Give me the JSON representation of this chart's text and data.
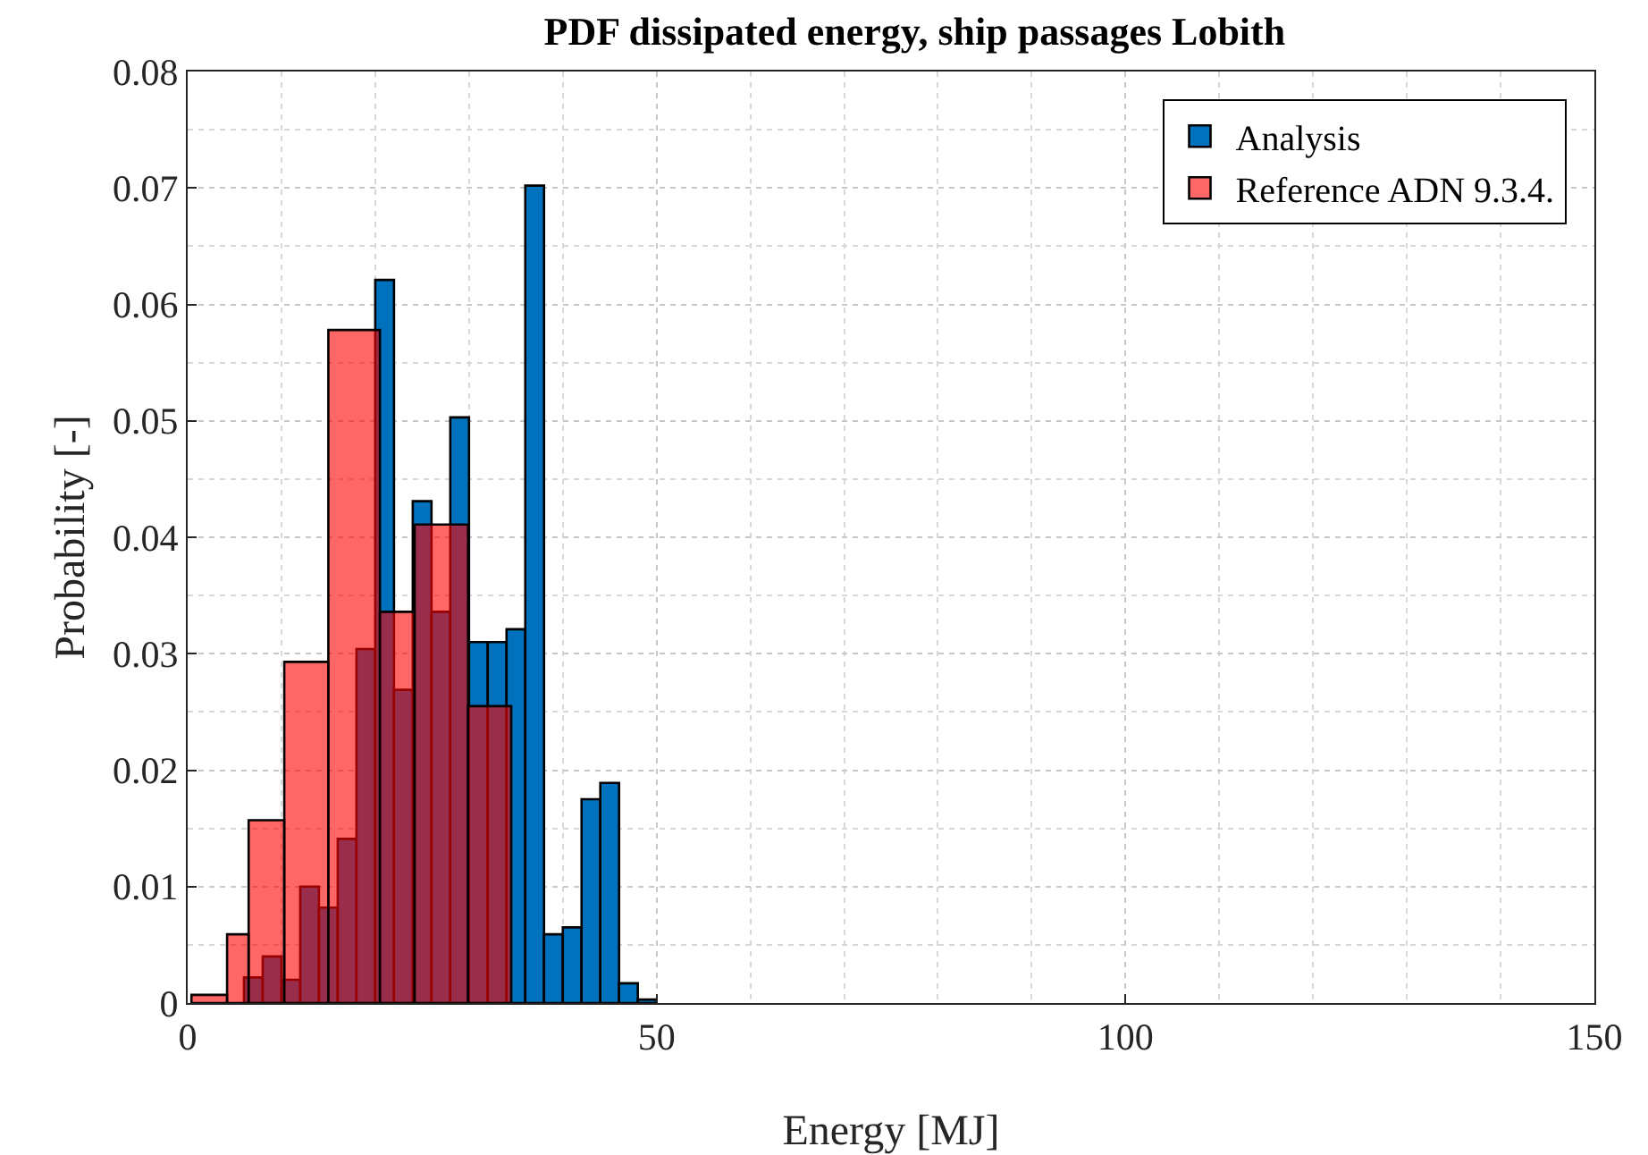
{
  "chart_data": {
    "type": "histogram",
    "title": "PDF dissipated energy, ship passages Lobith",
    "xlabel": "Energy [MJ]",
    "ylabel": "Probability [-]",
    "bins": [
      6,
      8,
      10,
      12,
      14,
      16,
      18,
      20,
      22,
      24,
      26,
      28,
      30,
      32,
      34,
      36,
      38,
      40,
      42,
      44,
      46,
      48,
      50
    ],
    "series": [
      {
        "name": "Analysis",
        "color": "#0072bd",
        "values": [
          0.0022,
          0.004,
          0.002,
          0.01,
          0.0082,
          0.0141,
          0.0304,
          0.0621,
          0.0269,
          0.0431,
          0.0336,
          0.0503,
          0.031,
          0.031,
          0.0321,
          0.0702,
          0.0059,
          0.0065,
          0.0175,
          0.0189,
          0.0017,
          0.0003
        ]
      },
      {
        "name": "Reference ADN 9.3.4.",
        "color": "#ff0000",
        "bins": [
          0.4,
          4.2,
          6.5,
          10.3,
          15,
          20.5,
          24.2,
          29.9,
          34.5
        ],
        "values": [
          0.0007,
          0.0059,
          0.0157,
          0.0293,
          0.0578,
          0.0336,
          0.0411,
          0.0255
        ]
      }
    ],
    "xlim": [
      0,
      150
    ],
    "xticks": [
      0,
      50,
      100,
      150
    ],
    "ylim": [
      0,
      0.08
    ],
    "yticks": [
      0,
      0.01,
      0.02,
      0.03,
      0.04,
      0.05,
      0.06,
      0.07,
      0.08
    ],
    "grid": true,
    "legend": "top right"
  }
}
